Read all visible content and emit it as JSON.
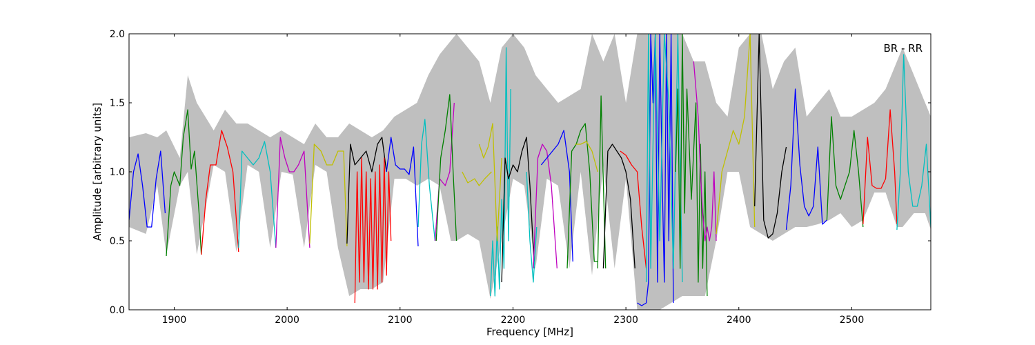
{
  "chart_data": {
    "type": "line",
    "title": "",
    "xlabel": "Frequency [MHz]",
    "ylabel": "Amplitude [arbitrary units]",
    "xlim": [
      1860,
      2570
    ],
    "ylim": [
      0.0,
      2.0
    ],
    "xticks": [
      1900,
      2000,
      2100,
      2200,
      2300,
      2400,
      2500
    ],
    "xtick_labels": [
      "1900",
      "2000",
      "2100",
      "2200",
      "2300",
      "2400",
      "2500"
    ],
    "yticks": [
      0.0,
      0.5,
      1.0,
      1.5,
      2.0
    ],
    "ytick_labels": [
      "0.0",
      "0.5",
      "1.0",
      "1.5",
      "2.0"
    ],
    "grid": false,
    "annotation": "BR - RR",
    "envelope": {
      "color": "#bfbfbf",
      "x": [
        1860,
        1875,
        1885,
        1893,
        1905,
        1912,
        1920,
        1935,
        1945,
        1955,
        1965,
        1975,
        1985,
        1995,
        2005,
        2015,
        2025,
        2035,
        2045,
        2055,
        2065,
        2075,
        2085,
        2095,
        2105,
        2115,
        2125,
        2135,
        2145,
        2150,
        2160,
        2170,
        2180,
        2190,
        2200,
        2210,
        2220,
        2230,
        2240,
        2250,
        2260,
        2270,
        2280,
        2290,
        2300,
        2310,
        2320,
        2330,
        2340,
        2350,
        2360,
        2370,
        2380,
        2390,
        2400,
        2410,
        2420,
        2430,
        2440,
        2450,
        2460,
        2470,
        2480,
        2490,
        2500,
        2510,
        2520,
        2530,
        2540,
        2545,
        2555,
        2565,
        2570
      ],
      "upper": [
        1.25,
        1.28,
        1.25,
        1.3,
        1.1,
        1.7,
        1.5,
        1.3,
        1.45,
        1.35,
        1.35,
        1.3,
        1.25,
        1.3,
        1.25,
        1.2,
        1.35,
        1.25,
        1.25,
        1.35,
        1.3,
        1.25,
        1.3,
        1.4,
        1.45,
        1.5,
        1.7,
        1.85,
        1.95,
        2.0,
        1.9,
        1.8,
        1.5,
        1.9,
        2.0,
        1.9,
        1.7,
        1.6,
        1.5,
        1.55,
        1.6,
        2.0,
        1.8,
        2.0,
        1.5,
        2.0,
        2.0,
        2.0,
        2.0,
        2.0,
        1.8,
        1.8,
        1.5,
        1.4,
        1.9,
        2.0,
        2.0,
        1.6,
        1.8,
        1.9,
        1.4,
        1.5,
        1.6,
        1.4,
        1.4,
        1.45,
        1.5,
        1.6,
        1.8,
        1.9,
        1.7,
        1.5,
        1.4
      ],
      "lower": [
        0.6,
        0.55,
        0.9,
        0.4,
        0.9,
        1.0,
        0.4,
        1.05,
        1.0,
        0.42,
        1.05,
        1.0,
        0.45,
        1.0,
        0.98,
        0.45,
        1.05,
        1.0,
        0.45,
        0.1,
        0.15,
        0.15,
        0.2,
        0.95,
        0.95,
        0.9,
        0.95,
        0.9,
        0.5,
        0.5,
        0.55,
        0.5,
        0.08,
        0.5,
        0.95,
        0.9,
        0.3,
        0.95,
        0.9,
        0.3,
        1.0,
        0.25,
        1.05,
        0.3,
        0.95,
        0.0,
        0.0,
        0.0,
        0.05,
        0.1,
        0.1,
        0.1,
        0.5,
        1.0,
        1.0,
        0.6,
        0.55,
        0.5,
        0.55,
        0.6,
        0.6,
        0.62,
        0.65,
        0.7,
        0.6,
        0.65,
        0.85,
        0.85,
        0.6,
        0.6,
        0.7,
        0.7,
        0.58
      ]
    },
    "series": [
      {
        "color": "#0000ff",
        "x": [
          1860,
          1864,
          1868,
          1872,
          1876,
          1880,
          1884,
          1888,
          1892
        ],
        "y": [
          0.65,
          1.0,
          1.13,
          0.9,
          0.6,
          0.6,
          0.95,
          1.15,
          0.7
        ]
      },
      {
        "color": "#008000",
        "x": [
          1893,
          1897,
          1900,
          1905,
          1908,
          1912,
          1915,
          1918,
          1922,
          1924
        ],
        "y": [
          0.39,
          0.9,
          1.0,
          0.9,
          1.25,
          1.45,
          1.02,
          1.15,
          0.7,
          0.4
        ]
      },
      {
        "color": "#ff0000",
        "x": [
          1924,
          1928,
          1932,
          1937,
          1942,
          1947,
          1952,
          1957
        ],
        "y": [
          0.4,
          0.8,
          1.05,
          1.05,
          1.3,
          1.18,
          1.0,
          0.42
        ]
      },
      {
        "color": "#00bfbf",
        "x": [
          1957,
          1960,
          1965,
          1970,
          1975,
          1980,
          1985,
          1990
        ],
        "y": [
          0.45,
          1.15,
          1.1,
          1.05,
          1.1,
          1.22,
          1.0,
          0.45
        ]
      },
      {
        "color": "#bf00bf",
        "x": [
          1990,
          1994,
          1998,
          2002,
          2006,
          2010,
          2015,
          2020
        ],
        "y": [
          0.45,
          1.25,
          1.1,
          1.0,
          1.0,
          1.05,
          1.15,
          0.45
        ]
      },
      {
        "color": "#bfbf00",
        "x": [
          2020,
          2024,
          2030,
          2035,
          2040,
          2045,
          2050,
          2053
        ],
        "y": [
          0.48,
          1.2,
          1.15,
          1.05,
          1.05,
          1.15,
          1.15,
          0.46
        ]
      },
      {
        "color": "#000000",
        "x": [
          2053,
          2056,
          2060,
          2065,
          2070,
          2075,
          2080,
          2084,
          2088
        ],
        "y": [
          0.48,
          1.2,
          1.05,
          1.1,
          1.15,
          1.0,
          1.2,
          1.25,
          1.0
        ]
      },
      {
        "color": "#ff0000",
        "x": [
          2060,
          2062,
          2064,
          2066,
          2068,
          2070,
          2072,
          2074,
          2076,
          2078,
          2080,
          2082,
          2084,
          2086,
          2088,
          2090,
          2092
        ],
        "y": [
          0.05,
          1.0,
          0.2,
          1.1,
          0.2,
          1.0,
          0.15,
          0.95,
          0.15,
          1.0,
          0.15,
          1.05,
          0.2,
          1.1,
          0.25,
          1.0,
          0.5
        ]
      },
      {
        "color": "#0000ff",
        "x": [
          2088,
          2092,
          2096,
          2100,
          2104,
          2108,
          2112,
          2116
        ],
        "y": [
          1.0,
          1.25,
          1.05,
          1.02,
          1.02,
          0.98,
          1.18,
          0.46
        ]
      },
      {
        "color": "#00bfbf",
        "x": [
          2116,
          2119,
          2122,
          2126,
          2131
        ],
        "y": [
          0.6,
          1.2,
          1.38,
          0.9,
          0.5
        ]
      },
      {
        "color": "#bf00bf",
        "x": [
          2131,
          2135,
          2140,
          2144,
          2148
        ],
        "y": [
          0.5,
          0.95,
          0.9,
          1.0,
          1.5
        ]
      },
      {
        "color": "#008000",
        "x": [
          2132,
          2136,
          2140,
          2144,
          2147,
          2150
        ],
        "y": [
          0.5,
          1.1,
          1.3,
          1.56,
          1.0,
          0.5
        ]
      },
      {
        "color": "#bfbf00",
        "x": [
          2155,
          2160,
          2166,
          2170,
          2175,
          2181
        ],
        "y": [
          1.0,
          0.92,
          0.95,
          0.9,
          0.95,
          1.0
        ]
      },
      {
        "color": "#00bfbf",
        "x": [
          2180,
          2182,
          2184,
          2186,
          2188,
          2190,
          2192,
          2194,
          2196,
          2198
        ],
        "y": [
          0.1,
          0.5,
          0.1,
          0.6,
          0.15,
          0.8,
          0.3,
          1.9,
          0.5,
          1.6
        ]
      },
      {
        "color": "#bfbf00",
        "x": [
          2170,
          2174,
          2178,
          2182,
          2186,
          2190
        ],
        "y": [
          1.2,
          1.1,
          1.18,
          1.35,
          0.5,
          1.1
        ]
      },
      {
        "color": "#000000",
        "x": [
          2190,
          2193,
          2196,
          2200,
          2204,
          2208,
          2212,
          2215,
          2219
        ],
        "y": [
          0.2,
          1.1,
          0.95,
          1.05,
          1.0,
          1.15,
          1.25,
          0.9,
          0.3
        ]
      },
      {
        "color": "#00bfbf",
        "x": [
          2212,
          2215,
          2218,
          2221
        ],
        "y": [
          1.0,
          0.5,
          0.2,
          0.6
        ]
      },
      {
        "color": "#bf00bf",
        "x": [
          2218,
          2222,
          2226,
          2230,
          2234,
          2239
        ],
        "y": [
          0.3,
          1.1,
          1.2,
          1.15,
          0.9,
          0.3
        ]
      },
      {
        "color": "#0000ff",
        "x": [
          2225,
          2230,
          2235,
          2240,
          2245,
          2250,
          2253
        ],
        "y": [
          1.05,
          1.1,
          1.15,
          1.2,
          1.3,
          1.0,
          0.35
        ]
      },
      {
        "color": "#008000",
        "x": [
          2248,
          2252,
          2256,
          2260,
          2264,
          2268,
          2272,
          2275
        ],
        "y": [
          0.3,
          1.15,
          1.2,
          1.3,
          1.35,
          1.0,
          0.35,
          0.35
        ]
      },
      {
        "color": "#bfbf00",
        "x": [
          2255,
          2260,
          2265,
          2270,
          2275
        ],
        "y": [
          1.2,
          1.2,
          1.22,
          1.15,
          1.0
        ]
      },
      {
        "color": "#008000",
        "x": [
          2275,
          2278,
          2282
        ],
        "y": [
          0.3,
          1.55,
          0.3
        ]
      },
      {
        "color": "#000000",
        "x": [
          2280,
          2284,
          2288,
          2292,
          2296,
          2300,
          2304,
          2308
        ],
        "y": [
          0.3,
          1.15,
          1.2,
          1.15,
          1.1,
          1.0,
          0.8,
          0.3
        ]
      },
      {
        "color": "#ff0000",
        "x": [
          2295,
          2300,
          2305,
          2310,
          2314,
          2318
        ],
        "y": [
          1.15,
          1.12,
          1.05,
          1.0,
          0.6,
          0.3
        ]
      },
      {
        "color": "#0000ff",
        "x": [
          2310,
          2314,
          2318,
          2320,
          2322,
          2324,
          2326,
          2328,
          2330,
          2332,
          2334,
          2336,
          2338,
          2340,
          2342
        ],
        "y": [
          0.05,
          0.03,
          0.05,
          0.2,
          2.0,
          1.5,
          2.0,
          0.2,
          2.0,
          1.0,
          0.2,
          2.0,
          0.5,
          2.0,
          0.05
        ]
      },
      {
        "color": "#00bfbf",
        "x": [
          2318,
          2320,
          2322,
          2324,
          2326,
          2330,
          2334,
          2338,
          2342,
          2346,
          2350
        ],
        "y": [
          0.2,
          2.0,
          0.3,
          1.2,
          2.0,
          0.5,
          2.0,
          1.5,
          0.3,
          2.0,
          0.2
        ]
      },
      {
        "color": "#008000",
        "x": [
          2344,
          2346,
          2348,
          2350,
          2352,
          2354,
          2358,
          2362,
          2364,
          2366,
          2368,
          2370,
          2372
        ],
        "y": [
          1.0,
          1.6,
          0.3,
          2.0,
          0.7,
          1.6,
          0.8,
          1.5,
          0.2,
          1.2,
          0.3,
          1.0,
          0.1
        ]
      },
      {
        "color": "#bf00bf",
        "x": [
          2360,
          2362,
          2364,
          2366,
          2368,
          2370,
          2372,
          2374,
          2376,
          2378,
          2380
        ],
        "y": [
          1.8,
          1.6,
          1.4,
          1.0,
          0.7,
          0.5,
          0.6,
          0.5,
          0.6,
          1.0,
          0.5
        ]
      },
      {
        "color": "#bfbf00",
        "x": [
          2380,
          2385,
          2390,
          2395,
          2400,
          2405,
          2410,
          2414
        ],
        "y": [
          0.55,
          1.0,
          1.15,
          1.3,
          1.2,
          1.4,
          2.0,
          0.6
        ]
      },
      {
        "color": "#000000",
        "x": [
          2414,
          2418,
          2422,
          2426,
          2430,
          2434,
          2438,
          2442
        ],
        "y": [
          0.75,
          2.0,
          0.65,
          0.52,
          0.55,
          0.7,
          1.0,
          1.18
        ]
      },
      {
        "color": "#0000ff",
        "x": [
          2442,
          2446,
          2450,
          2454,
          2458,
          2462,
          2466,
          2470,
          2474,
          2478
        ],
        "y": [
          0.58,
          0.9,
          1.6,
          1.05,
          0.75,
          0.68,
          0.75,
          1.18,
          0.62,
          0.65
        ]
      },
      {
        "color": "#008000",
        "x": [
          2478,
          2482,
          2486,
          2490,
          2494,
          2498,
          2502,
          2506,
          2510
        ],
        "y": [
          0.65,
          1.4,
          0.9,
          0.8,
          0.9,
          1.0,
          1.3,
          1.0,
          0.6
        ]
      },
      {
        "color": "#ff0000",
        "x": [
          2510,
          2514,
          2518,
          2522,
          2526,
          2530,
          2534,
          2538,
          2540
        ],
        "y": [
          0.62,
          1.25,
          0.9,
          0.88,
          0.88,
          0.95,
          1.45,
          1.0,
          0.62
        ]
      },
      {
        "color": "#00bfbf",
        "x": [
          2540,
          2543,
          2546,
          2550,
          2554,
          2558,
          2562,
          2566,
          2570
        ],
        "y": [
          0.58,
          1.0,
          1.85,
          1.0,
          0.75,
          0.75,
          0.9,
          1.2,
          0.6
        ]
      }
    ]
  }
}
